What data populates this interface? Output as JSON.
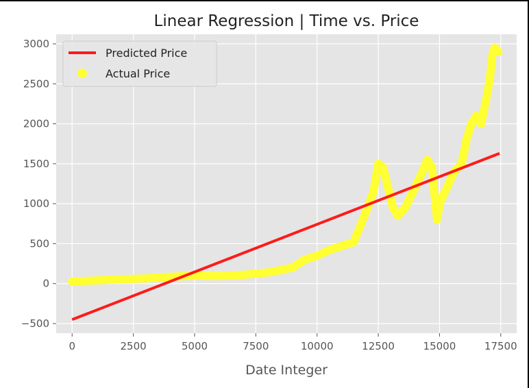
{
  "chart_data": {
    "type": "scatter",
    "title": "Linear Regression | Time vs. Price",
    "xlabel": "Date Integer",
    "ylabel": "",
    "xlim": [
      -650,
      18150
    ],
    "ylim": [
      -620,
      3120
    ],
    "xticks": [
      0,
      2500,
      5000,
      7500,
      10000,
      12500,
      15000,
      17500
    ],
    "xtick_labels": [
      "0",
      "2500",
      "5000",
      "7500",
      "10000",
      "12500",
      "15000",
      "17500"
    ],
    "yticks": [
      -500,
      0,
      500,
      1000,
      1500,
      2000,
      2500,
      3000
    ],
    "ytick_labels": [
      "−500",
      "0",
      "500",
      "1000",
      "1500",
      "2000",
      "2500",
      "3000"
    ],
    "grid": true,
    "legend_position": "upper-left",
    "colors": {
      "predicted": "#ff1a1a",
      "actual": "#ffff33",
      "background": "#e5e5e5",
      "grid": "#ffffff"
    },
    "series": [
      {
        "name": "Predicted Price",
        "kind": "line",
        "color": "#ff1a1a",
        "x": [
          0,
          17450
        ],
        "y": [
          -450,
          1630
        ]
      },
      {
        "name": "Actual Price",
        "kind": "scatter",
        "color": "#ffff33",
        "x": [
          0,
          1000,
          2000,
          3000,
          4000,
          5000,
          6000,
          7000,
          8000,
          9000,
          9500,
          10000,
          10500,
          11000,
          11500,
          12000,
          12300,
          12500,
          12700,
          12900,
          13100,
          13300,
          13600,
          14000,
          14300,
          14500,
          14700,
          14800,
          14900,
          15000,
          15300,
          15600,
          15900,
          16100,
          16300,
          16500,
          16700,
          16900,
          17050,
          17150,
          17250,
          17400
        ],
        "y": [
          25,
          40,
          55,
          65,
          85,
          100,
          95,
          110,
          140,
          200,
          300,
          350,
          420,
          470,
          520,
          900,
          1150,
          1500,
          1450,
          1200,
          950,
          850,
          950,
          1200,
          1400,
          1550,
          1450,
          1100,
          800,
          1000,
          1200,
          1400,
          1500,
          1800,
          2000,
          2100,
          2000,
          2300,
          2550,
          2850,
          2950,
          2900
        ]
      }
    ]
  }
}
